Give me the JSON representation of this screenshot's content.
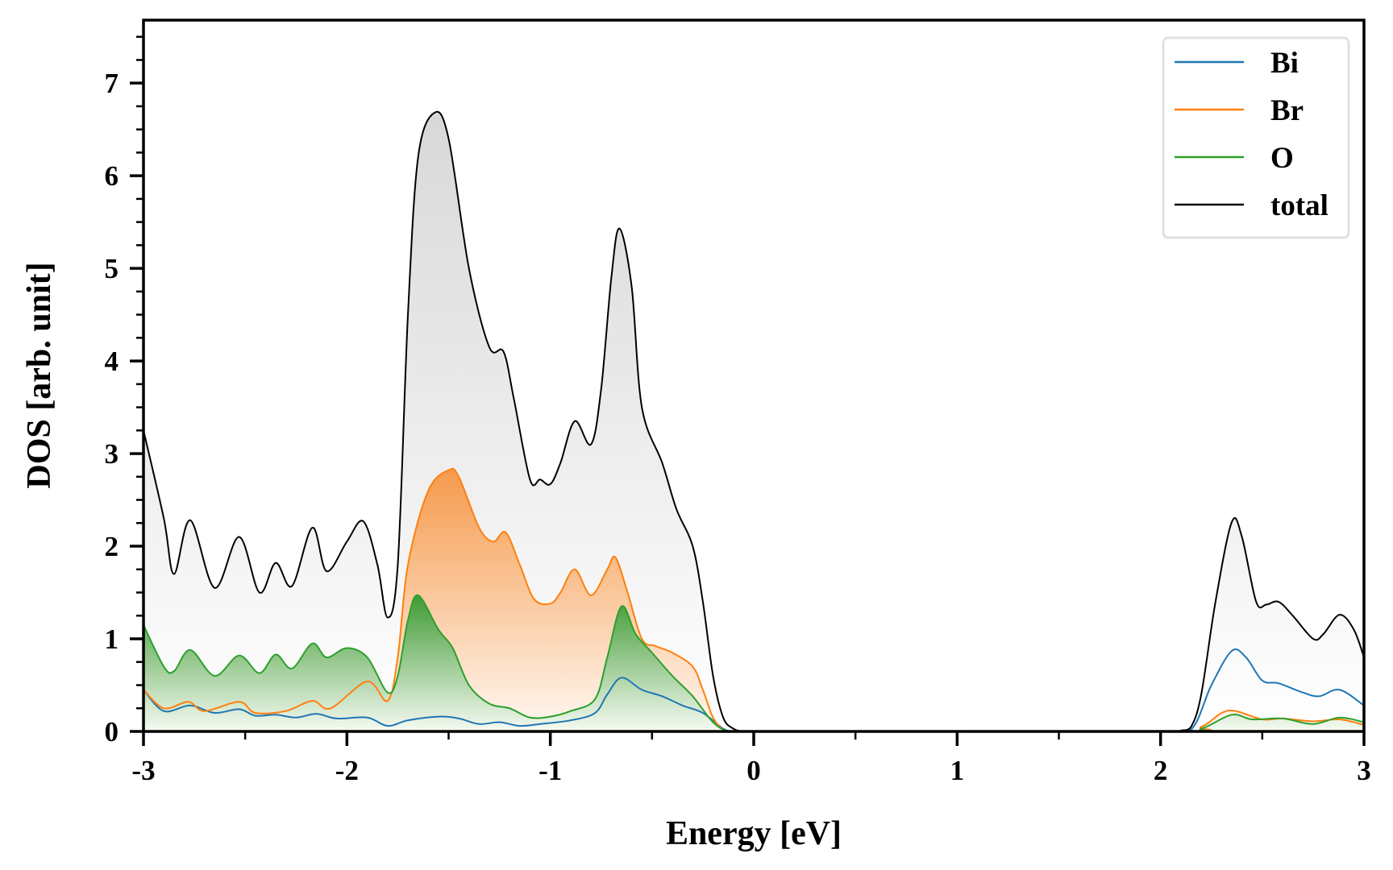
{
  "chart_data": {
    "type": "area",
    "title": "",
    "xlabel": "Energy [eV]",
    "ylabel": "DOS [arb. unit]",
    "xlim": [
      -3,
      3
    ],
    "ylim": [
      0,
      7.68
    ],
    "xticks": [
      -3,
      -2,
      -1,
      0,
      1,
      2,
      3
    ],
    "xtick_labels": [
      "-3",
      "-2",
      "-1",
      "0",
      "1",
      "2",
      "3"
    ],
    "yticks": [
      0,
      1,
      2,
      3,
      4,
      5,
      6,
      7
    ],
    "ytick_labels": [
      "0",
      "1",
      "2",
      "3",
      "4",
      "5",
      "6",
      "7"
    ],
    "grid": false,
    "legend_position": "top-right",
    "series": [
      {
        "name": "Bi",
        "color": "#1f77b4",
        "filled": false,
        "x": [
          -3,
          -2.9,
          -2.77,
          -2.65,
          -2.53,
          -2.45,
          -2.35,
          -2.25,
          -2.15,
          -2.05,
          -1.9,
          -1.8,
          -1.7,
          -1.55,
          -1.45,
          -1.35,
          -1.25,
          -1.15,
          -1.05,
          -0.9,
          -0.78,
          -0.72,
          -0.65,
          -0.55,
          -0.45,
          -0.35,
          -0.25,
          -0.15,
          -0.1,
          0,
          2.0,
          2.15,
          2.25,
          2.35,
          2.42,
          2.5,
          2.58,
          2.7,
          2.78,
          2.88,
          3
        ],
        "y": [
          0.45,
          0.22,
          0.28,
          0.2,
          0.24,
          0.17,
          0.18,
          0.15,
          0.19,
          0.14,
          0.15,
          0.06,
          0.12,
          0.16,
          0.14,
          0.08,
          0.1,
          0.06,
          0.08,
          0.12,
          0.2,
          0.4,
          0.58,
          0.45,
          0.38,
          0.28,
          0.2,
          0.03,
          0,
          0,
          0,
          0.02,
          0.5,
          0.87,
          0.8,
          0.55,
          0.52,
          0.42,
          0.38,
          0.45,
          0.28
        ]
      },
      {
        "name": "Br",
        "color": "#ff7f0e",
        "filled": true,
        "x": [
          -3,
          -2.9,
          -2.78,
          -2.7,
          -2.53,
          -2.45,
          -2.3,
          -2.17,
          -2.08,
          -1.9,
          -1.8,
          -1.75,
          -1.7,
          -1.6,
          -1.5,
          -1.45,
          -1.35,
          -1.28,
          -1.22,
          -1.15,
          -1.08,
          -1.0,
          -0.95,
          -0.88,
          -0.8,
          -0.72,
          -0.68,
          -0.62,
          -0.55,
          -0.48,
          -0.4,
          -0.3,
          -0.25,
          -0.2,
          -0.15,
          -0.1,
          0,
          2.05,
          2.2,
          2.3,
          2.37,
          2.5,
          2.6,
          2.75,
          2.88,
          3
        ],
        "y": [
          0.45,
          0.25,
          0.32,
          0.22,
          0.32,
          0.2,
          0.22,
          0.33,
          0.25,
          0.54,
          0.33,
          0.8,
          1.8,
          2.6,
          2.82,
          2.75,
          2.2,
          2.05,
          2.15,
          1.8,
          1.43,
          1.38,
          1.5,
          1.75,
          1.47,
          1.75,
          1.88,
          1.5,
          1.0,
          0.92,
          0.85,
          0.7,
          0.45,
          0.15,
          0.02,
          0,
          0,
          0,
          0.05,
          0.2,
          0.22,
          0.13,
          0.14,
          0.11,
          0.13,
          0.07
        ]
      },
      {
        "name": "O",
        "color": "#2ca02c",
        "filled": true,
        "x": [
          -3,
          -2.9,
          -2.85,
          -2.77,
          -2.65,
          -2.53,
          -2.43,
          -2.35,
          -2.27,
          -2.17,
          -2.1,
          -2.0,
          -1.9,
          -1.8,
          -1.75,
          -1.7,
          -1.65,
          -1.55,
          -1.48,
          -1.4,
          -1.3,
          -1.2,
          -1.1,
          -1.0,
          -0.9,
          -0.78,
          -0.72,
          -0.65,
          -0.58,
          -0.5,
          -0.4,
          -0.3,
          -0.2,
          -0.12,
          0,
          2.05,
          2.2,
          2.35,
          2.45,
          2.6,
          2.75,
          2.88,
          3
        ],
        "y": [
          1.15,
          0.7,
          0.65,
          0.88,
          0.6,
          0.82,
          0.63,
          0.83,
          0.68,
          0.95,
          0.8,
          0.9,
          0.8,
          0.42,
          0.6,
          1.2,
          1.47,
          1.1,
          0.9,
          0.5,
          0.3,
          0.25,
          0.15,
          0.16,
          0.22,
          0.35,
          0.8,
          1.35,
          1.05,
          0.85,
          0.6,
          0.38,
          0.1,
          0,
          0,
          0,
          0.03,
          0.18,
          0.13,
          0.14,
          0.08,
          0.15,
          0.1
        ]
      },
      {
        "name": "total",
        "color": "#000000",
        "filled": true,
        "x": [
          -3,
          -2.9,
          -2.85,
          -2.77,
          -2.65,
          -2.53,
          -2.43,
          -2.35,
          -2.27,
          -2.17,
          -2.1,
          -2.0,
          -1.92,
          -1.85,
          -1.8,
          -1.75,
          -1.7,
          -1.65,
          -1.57,
          -1.5,
          -1.4,
          -1.3,
          -1.23,
          -1.18,
          -1.1,
          -1.05,
          -1.0,
          -0.95,
          -0.88,
          -0.8,
          -0.75,
          -0.7,
          -0.66,
          -0.6,
          -0.55,
          -0.45,
          -0.38,
          -0.3,
          -0.25,
          -0.2,
          -0.15,
          -0.1,
          -0.05,
          0,
          2.05,
          2.1,
          2.15,
          2.2,
          2.27,
          2.35,
          2.4,
          2.47,
          2.52,
          2.58,
          2.65,
          2.75,
          2.8,
          2.88,
          2.95,
          3
        ],
        "y": [
          3.25,
          2.3,
          1.7,
          2.28,
          1.55,
          2.1,
          1.5,
          1.82,
          1.57,
          2.2,
          1.73,
          2.05,
          2.27,
          1.8,
          1.23,
          1.8,
          4.5,
          6.2,
          6.68,
          6.4,
          5.0,
          4.15,
          4.1,
          3.6,
          2.72,
          2.72,
          2.67,
          2.9,
          3.35,
          3.1,
          3.7,
          4.9,
          5.43,
          4.8,
          3.5,
          2.9,
          2.4,
          2.0,
          1.4,
          0.6,
          0.15,
          0.03,
          0,
          0,
          0,
          0.01,
          0.05,
          0.4,
          1.4,
          2.26,
          2.1,
          1.4,
          1.37,
          1.4,
          1.25,
          1.0,
          1.05,
          1.26,
          1.1,
          0.8
        ]
      }
    ]
  }
}
